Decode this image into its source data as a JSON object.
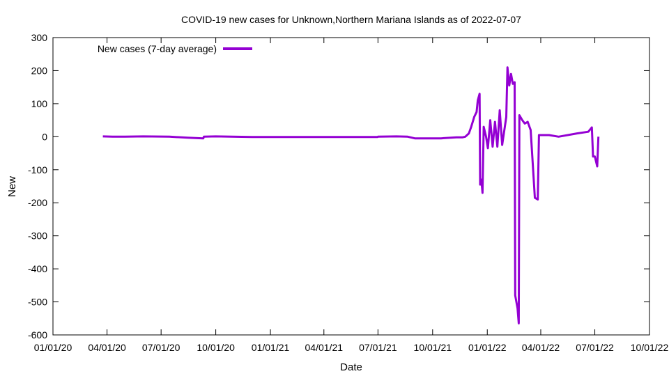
{
  "chart_data": {
    "type": "line",
    "title": "COVID-19 new cases for Unknown,Northern Mariana Islands as of 2022-07-07",
    "xlabel": "Date",
    "ylabel": "New",
    "xlim": [
      "2020-01-01",
      "2022-10-01"
    ],
    "ylim": [
      -600,
      300
    ],
    "grid": false,
    "legend_position": "top-left",
    "x_tick_labels": [
      "01/01/20",
      "04/01/20",
      "07/01/20",
      "10/01/20",
      "01/01/21",
      "04/01/21",
      "07/01/21",
      "10/01/21",
      "01/01/22",
      "04/01/22",
      "07/01/22",
      "10/01/22"
    ],
    "y_ticks": [
      -600,
      -500,
      -400,
      -300,
      -200,
      -100,
      0,
      100,
      200,
      300
    ],
    "series": [
      {
        "name": "New cases (7-day average)",
        "color": "#9400D3",
        "points": [
          [
            "2020-03-25",
            1
          ],
          [
            "2020-04-10",
            0
          ],
          [
            "2020-05-01",
            0
          ],
          [
            "2020-06-01",
            1
          ],
          [
            "2020-07-15",
            0
          ],
          [
            "2020-08-15",
            -3
          ],
          [
            "2020-09-10",
            -5
          ],
          [
            "2020-09-11",
            0
          ],
          [
            "2020-10-01",
            1
          ],
          [
            "2020-12-01",
            -1
          ],
          [
            "2021-03-01",
            -1
          ],
          [
            "2021-06-30",
            -1
          ],
          [
            "2021-07-01",
            0
          ],
          [
            "2021-08-01",
            1
          ],
          [
            "2021-08-20",
            0
          ],
          [
            "2021-09-01",
            -5
          ],
          [
            "2021-10-15",
            -5
          ],
          [
            "2021-11-10",
            -2
          ],
          [
            "2021-11-20",
            -2
          ],
          [
            "2021-11-25",
            0
          ],
          [
            "2021-12-01",
            10
          ],
          [
            "2021-12-05",
            30
          ],
          [
            "2021-12-10",
            60
          ],
          [
            "2021-12-14",
            75
          ],
          [
            "2021-12-16",
            110
          ],
          [
            "2021-12-19",
            130
          ],
          [
            "2021-12-20",
            -145
          ],
          [
            "2021-12-22",
            -130
          ],
          [
            "2021-12-24",
            -170
          ],
          [
            "2021-12-26",
            30
          ],
          [
            "2021-12-30",
            0
          ],
          [
            "2022-01-02",
            -35
          ],
          [
            "2022-01-06",
            50
          ],
          [
            "2022-01-10",
            -30
          ],
          [
            "2022-01-14",
            45
          ],
          [
            "2022-01-18",
            -30
          ],
          [
            "2022-01-22",
            80
          ],
          [
            "2022-01-26",
            -25
          ],
          [
            "2022-02-02",
            60
          ],
          [
            "2022-02-04",
            210
          ],
          [
            "2022-02-07",
            155
          ],
          [
            "2022-02-10",
            190
          ],
          [
            "2022-02-13",
            160
          ],
          [
            "2022-02-16",
            165
          ],
          [
            "2022-02-17",
            -480
          ],
          [
            "2022-02-21",
            -520
          ],
          [
            "2022-02-23",
            -565
          ],
          [
            "2022-02-24",
            65
          ],
          [
            "2022-03-01",
            50
          ],
          [
            "2022-03-05",
            40
          ],
          [
            "2022-03-10",
            45
          ],
          [
            "2022-03-15",
            20
          ],
          [
            "2022-03-22",
            -185
          ],
          [
            "2022-03-27",
            -190
          ],
          [
            "2022-03-29",
            5
          ],
          [
            "2022-04-15",
            5
          ],
          [
            "2022-05-01",
            0
          ],
          [
            "2022-06-01",
            10
          ],
          [
            "2022-06-20",
            15
          ],
          [
            "2022-06-26",
            28
          ],
          [
            "2022-06-28",
            -60
          ],
          [
            "2022-07-01",
            -60
          ],
          [
            "2022-07-05",
            -90
          ],
          [
            "2022-07-07",
            0
          ]
        ]
      }
    ]
  }
}
